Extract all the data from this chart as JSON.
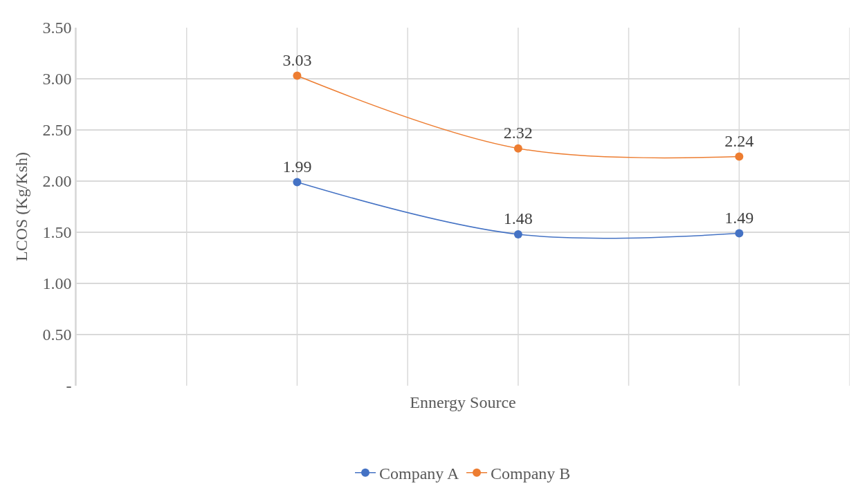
{
  "chart_data": {
    "type": "line",
    "xlabel": "Ennergy Source",
    "ylabel": "LCOS (Kg/Ksh)",
    "categories": [
      null,
      null,
      null
    ],
    "series": [
      {
        "name": "Company A",
        "color": "#4472c4",
        "values": [
          1.99,
          1.48,
          1.49
        ]
      },
      {
        "name": "Company B",
        "color": "#ed7d31",
        "values": [
          3.03,
          2.32,
          2.24
        ]
      }
    ],
    "ylim": [
      0,
      3.5
    ],
    "yticks": [
      {
        "value": 0,
        "label": "-"
      },
      {
        "value": 0.5,
        "label": "0.50"
      },
      {
        "value": 1,
        "label": "1.00"
      },
      {
        "value": 1.5,
        "label": "1.50"
      },
      {
        "value": 2,
        "label": "2.00"
      },
      {
        "value": 2.5,
        "label": "2.50"
      },
      {
        "value": 3,
        "label": "3.00"
      },
      {
        "value": 3.5,
        "label": "3.50"
      }
    ],
    "grid": true,
    "legend": "bottom",
    "marker": "circle",
    "line_style": "solid",
    "data_labels": true
  }
}
